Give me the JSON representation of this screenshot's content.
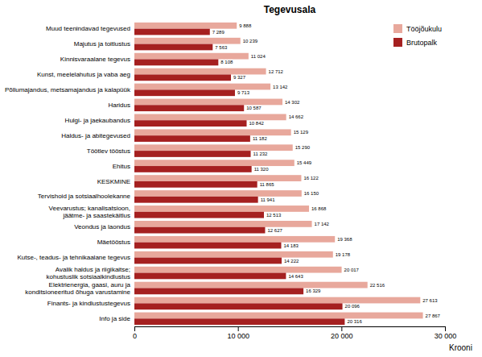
{
  "chart_data": {
    "type": "bar",
    "orientation": "horizontal",
    "title": "Tegevusala",
    "xlabel": "Krooni",
    "categories": [
      "Muud teenindavad tegevused",
      "Majutus ja toitlustus",
      "Kinnisvaraalane tegevus",
      "Kunst, meelelahutus ja vaba aeg",
      "Põllumajandus, metsamajandus ja kalapüük",
      "Haridus",
      "Hulgi- ja jaekaubandus",
      "Haldus- ja abitegevused",
      "Töötlev tööstus",
      "Ehitus",
      "KESKMINE",
      "Tervishoid ja sotsiaalhoolekanne",
      "Veevarustus; kanalisatsioon,\njäätme- ja saastekäitlus",
      "Veondus ja laondus",
      "Mäetööstus",
      "Kutse-, teadus- ja tehnikaalane tegevus",
      "Avalik haldus ja riigikaitse;\nkohustuslik sotsiaalkindlustus",
      "Elektrienergia, gaasi, auru ja\nkonditsioneeritud õhuga varustamine",
      "Finants- ja kindlustustegevus",
      "Info ja side"
    ],
    "series": [
      {
        "name": "Tööjõukulu",
        "color": "#e8a89c",
        "values": [
          9888,
          10239,
          11024,
          12712,
          13142,
          14302,
          14662,
          15129,
          15290,
          15449,
          16122,
          16150,
          16868,
          17142,
          19368,
          19178,
          20017,
          22516,
          27613,
          27867
        ],
        "value_labels": [
          "9 888",
          "10 239",
          "11 024",
          "12 712",
          "13 142",
          "14 302",
          "14 662",
          "15 129",
          "15 290",
          "15 449",
          "16 122",
          "16 150",
          "16 868",
          "17 142",
          "19 368",
          "19 178",
          "20 017",
          "22 516",
          "27 613",
          "27 867"
        ]
      },
      {
        "name": "Brutopalk",
        "color": "#a52020",
        "values": [
          7289,
          7563,
          8108,
          9327,
          9713,
          10587,
          10842,
          11182,
          11232,
          11320,
          11865,
          11941,
          12513,
          12627,
          14183,
          14222,
          14643,
          16329,
          20096,
          20316
        ],
        "value_labels": [
          "7 289",
          "7 563",
          "8 108",
          "9 327",
          "9 713",
          "10 587",
          "10 842",
          "11 182",
          "11 232",
          "11 320",
          "11 865",
          "11 941",
          "12 513",
          "12 627",
          "14 183",
          "14 222",
          "14 643",
          "16 329",
          "20 096",
          "20 316"
        ]
      }
    ],
    "xlim": [
      0,
      30000
    ],
    "xticks": [
      0,
      {
        "value": 10000,
        "label": "10 000"
      },
      {
        "value": 20000,
        "label": "20 000"
      },
      {
        "value": 30000,
        "label": "30 000"
      }
    ],
    "grid": false,
    "legend": "upper right",
    "data_labels": true
  }
}
